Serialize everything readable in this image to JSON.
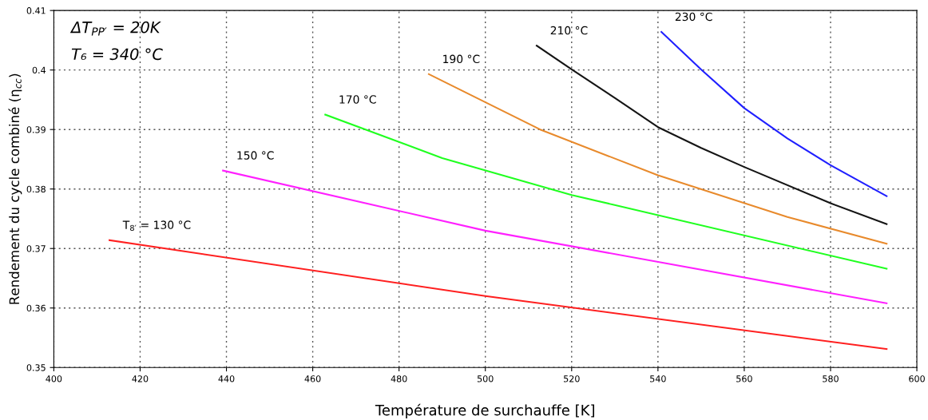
{
  "chart_data": {
    "type": "line",
    "xlabel": "Température de surchauffe [K]",
    "ylabel": "Rendement du cycle combiné (η$_{cc}$)",
    "annotations": [
      "ΔT$_{PP′}$ = 20K",
      "T₆ = 340 °C"
    ],
    "xlim": [
      400,
      600
    ],
    "xticks": [
      400,
      420,
      440,
      460,
      480,
      500,
      520,
      540,
      560,
      580,
      600
    ],
    "ylim": [
      0.35,
      0.41
    ],
    "yticks": [
      0.35,
      0.36,
      0.37,
      0.38,
      0.39,
      0.4,
      0.41
    ],
    "grid": true,
    "line_style": "solid",
    "marker": "none",
    "legend": false,
    "series": [
      {
        "name": "T$_{8′}$ = 130 °C",
        "color": "#ff2020",
        "x": [
          412.9,
          500,
          593
        ],
        "values": [
          0.3714,
          0.362,
          0.3531
        ]
      },
      {
        "name": "150 °C",
        "color": "#ff20ff",
        "x": [
          439.2,
          500,
          593
        ],
        "values": [
          0.3831,
          0.373,
          0.3608
        ]
      },
      {
        "name": "170 °C",
        "color": "#20ff20",
        "x": [
          462.9,
          490,
          520,
          593
        ],
        "values": [
          0.3925,
          0.3852,
          0.379,
          0.3666
        ]
      },
      {
        "name": "190 °C",
        "color": "#e88a2c",
        "x": [
          486.9,
          512.7,
          540,
          570,
          593
        ],
        "values": [
          0.3993,
          0.39,
          0.3823,
          0.3753,
          0.3708
        ]
      },
      {
        "name": "210 °C",
        "color": "#151515",
        "x": [
          511.9,
          520,
          530,
          540,
          550,
          560,
          580,
          593
        ],
        "values": [
          0.4041,
          0.4001,
          0.3953,
          0.3904,
          0.3869,
          0.3837,
          0.3776,
          0.3741
        ]
      },
      {
        "name": "230 °C",
        "color": "#2020ff",
        "x": [
          540.8,
          550,
          560,
          570,
          580,
          593
        ],
        "values": [
          0.4064,
          0.4001,
          0.3936,
          0.3885,
          0.384,
          0.3788
        ]
      }
    ]
  }
}
